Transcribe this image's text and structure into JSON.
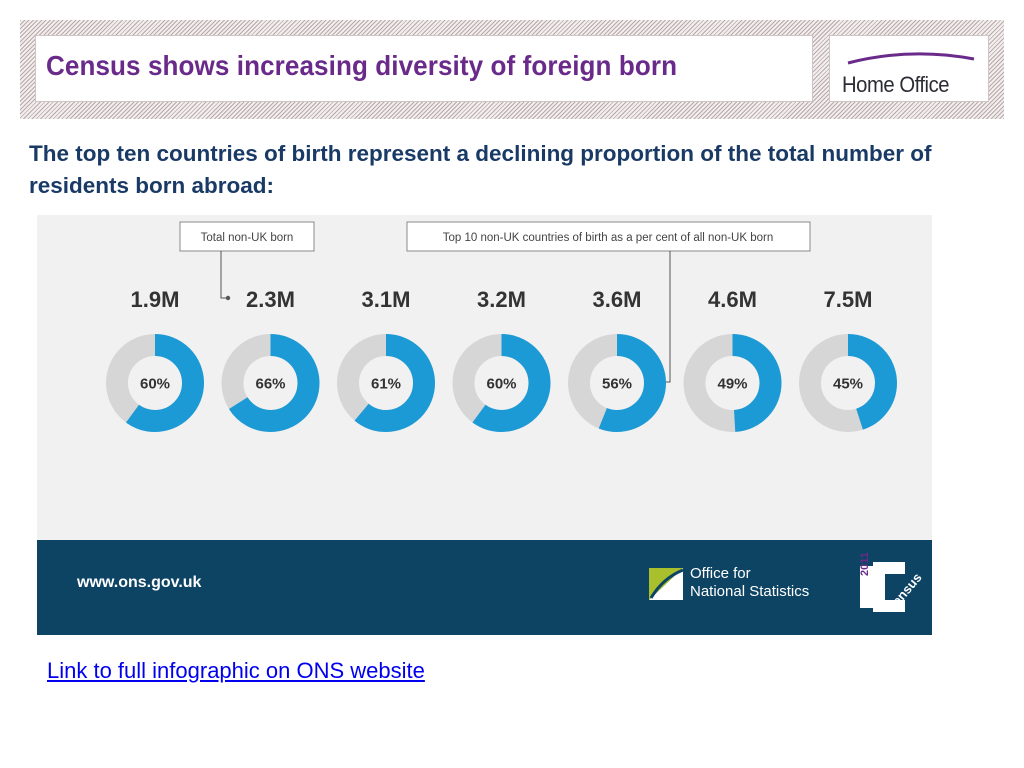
{
  "header": {
    "title": "Census shows increasing diversity of foreign born",
    "logo_text": "Home Office"
  },
  "subtitle": "The top ten countries of birth represent a declining proportion of the total number of residents born abroad:",
  "infographic": {
    "callout_total": "Total non-UK born",
    "callout_top10": "Top 10 non-UK countries of birth as a per cent of all non-UK born",
    "footer_url": "www.ons.gov.uk",
    "ons_text_line1": "Office for",
    "ons_text_line2": "National Statistics",
    "census_year": "2011",
    "census_word": "Census"
  },
  "colors": {
    "donut_fill": "#1c9ad6",
    "donut_track": "#d6d6d6",
    "title": "#6a2a8a",
    "subtitle": "#1a3a66",
    "footer": "#0d4363"
  },
  "chart_data": {
    "type": "donut",
    "categories": [
      "1.9M",
      "2.3M",
      "3.1M",
      "3.2M",
      "3.6M",
      "4.6M",
      "7.5M"
    ],
    "values": [
      60,
      66,
      61,
      60,
      56,
      49,
      45
    ],
    "labels": [
      "60%",
      "66%",
      "61%",
      "60%",
      "56%",
      "49%",
      "45%"
    ],
    "unit": "%"
  },
  "link_text": "Link to full infographic on ONS website"
}
